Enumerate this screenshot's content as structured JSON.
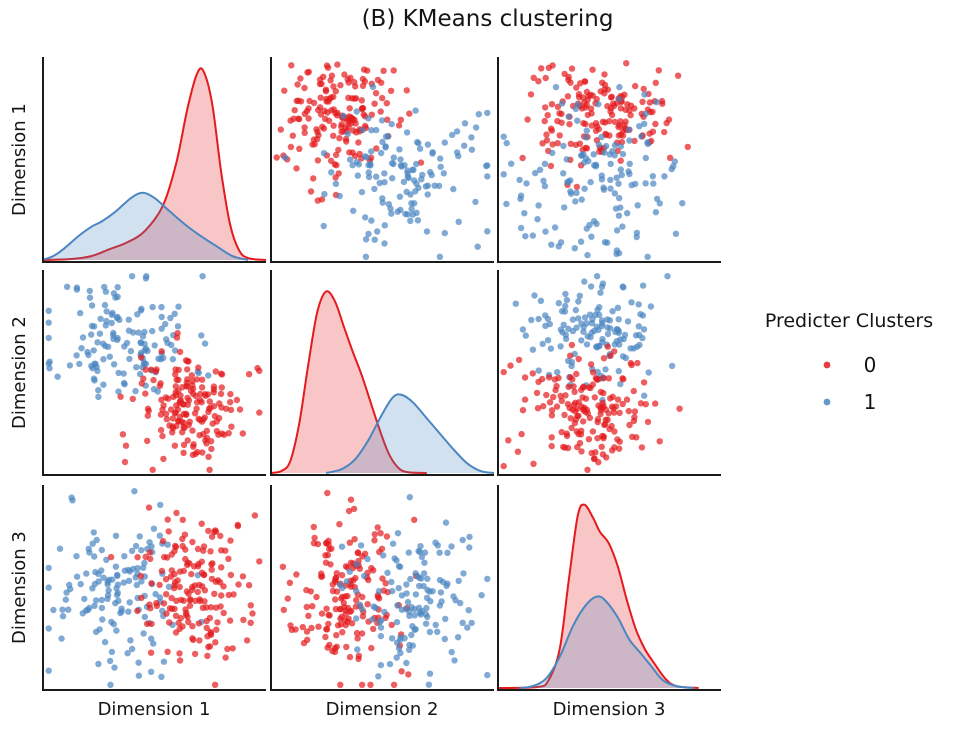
{
  "figure": {
    "title": "(B) KMeans clustering"
  },
  "axes": {
    "x_labels": [
      "Dimension 1",
      "Dimension 2",
      "Dimension 3"
    ],
    "y_labels": [
      "Dimension 1",
      "Dimension 2",
      "Dimension 3"
    ]
  },
  "legend": {
    "title": "Predicter Clusters",
    "entries": [
      {
        "label": "0",
        "color": "#e41a1c"
      },
      {
        "label": "1",
        "color": "#4a86c2"
      }
    ]
  },
  "chart_data": {
    "type": "scatter",
    "subtype": "pairplot-with-kde-diagonal",
    "title": "(B) KMeans clustering",
    "variables": [
      "Dimension 1",
      "Dimension 2",
      "Dimension 3"
    ],
    "legend_title": "Predicter Clusters",
    "cluster_labels": [
      "0",
      "1"
    ],
    "colors": {
      "cluster_0": "#e41a1c",
      "cluster_1": "#4a86c2"
    },
    "point_opacity": 0.7,
    "point_radius": 3.2,
    "kde_fill_opacity": 0.25,
    "kde_line_width": 2,
    "grid": "off",
    "legend_position": "right",
    "panels": [
      {
        "row": 1,
        "col": 1,
        "kind": "kde",
        "x_var": "Dimension 1",
        "curves": [
          {
            "cluster": "0",
            "color": "#e41a1c",
            "points": [
              [
                0.0,
                0
              ],
              [
                0.13,
                0.005
              ],
              [
                0.22,
                0.02
              ],
              [
                0.3,
                0.055
              ],
              [
                0.38,
                0.09
              ],
              [
                0.46,
                0.15
              ],
              [
                0.54,
                0.28
              ],
              [
                0.6,
                0.5
              ],
              [
                0.65,
                0.78
              ],
              [
                0.69,
                0.95
              ],
              [
                0.72,
                0.97
              ],
              [
                0.76,
                0.8
              ],
              [
                0.8,
                0.45
              ],
              [
                0.84,
                0.18
              ],
              [
                0.88,
                0.05
              ],
              [
                0.92,
                0.01
              ],
              [
                1.0,
                0
              ]
            ]
          },
          {
            "cluster": "1",
            "color": "#4a86c2",
            "points": [
              [
                0.0,
                0
              ],
              [
                0.05,
                0.02
              ],
              [
                0.1,
                0.06
              ],
              [
                0.16,
                0.12
              ],
              [
                0.22,
                0.17
              ],
              [
                0.27,
                0.2
              ],
              [
                0.33,
                0.25
              ],
              [
                0.4,
                0.32
              ],
              [
                0.45,
                0.345
              ],
              [
                0.5,
                0.32
              ],
              [
                0.56,
                0.26
              ],
              [
                0.63,
                0.19
              ],
              [
                0.7,
                0.13
              ],
              [
                0.78,
                0.07
              ],
              [
                0.85,
                0.02
              ],
              [
                0.92,
                0
              ]
            ]
          }
        ]
      },
      {
        "row": 1,
        "col": 2,
        "kind": "scatter",
        "x_var": "Dimension 2",
        "y_var": "Dimension 1",
        "clusters": [
          {
            "cluster": "0",
            "color": "#e41a1c",
            "center": [
              0.3,
              0.7
            ],
            "std": [
              0.12,
              0.14
            ],
            "n": 170,
            "seed": 7
          },
          {
            "cluster": "1",
            "color": "#4a86c2",
            "center": [
              0.6,
              0.42
            ],
            "std": [
              0.16,
              0.17
            ],
            "n": 135,
            "seed": 8
          }
        ]
      },
      {
        "row": 1,
        "col": 3,
        "kind": "scatter",
        "x_var": "Dimension 3",
        "y_var": "Dimension 1",
        "clusters": [
          {
            "cluster": "0",
            "color": "#e41a1c",
            "center": [
              0.45,
              0.72
            ],
            "std": [
              0.16,
              0.13
            ],
            "n": 170,
            "seed": 9
          },
          {
            "cluster": "1",
            "color": "#4a86c2",
            "center": [
              0.44,
              0.4
            ],
            "std": [
              0.17,
              0.19
            ],
            "n": 135,
            "seed": 10
          }
        ]
      },
      {
        "row": 2,
        "col": 1,
        "kind": "scatter",
        "x_var": "Dimension 1",
        "y_var": "Dimension 2",
        "clusters": [
          {
            "cluster": "1",
            "color": "#4a86c2",
            "center": [
              0.37,
              0.66
            ],
            "std": [
              0.15,
              0.16
            ],
            "n": 135,
            "seed": 11
          },
          {
            "cluster": "0",
            "color": "#e41a1c",
            "center": [
              0.67,
              0.33
            ],
            "std": [
              0.12,
              0.14
            ],
            "n": 170,
            "seed": 12
          }
        ]
      },
      {
        "row": 2,
        "col": 2,
        "kind": "kde",
        "x_var": "Dimension 2",
        "curves": [
          {
            "cluster": "0",
            "color": "#e41a1c",
            "points": [
              [
                0.0,
                0
              ],
              [
                0.05,
                0.01
              ],
              [
                0.09,
                0.06
              ],
              [
                0.13,
                0.25
              ],
              [
                0.17,
                0.55
              ],
              [
                0.21,
                0.82
              ],
              [
                0.25,
                0.93
              ],
              [
                0.29,
                0.88
              ],
              [
                0.33,
                0.75
              ],
              [
                0.37,
                0.62
              ],
              [
                0.41,
                0.5
              ],
              [
                0.45,
                0.36
              ],
              [
                0.49,
                0.22
              ],
              [
                0.53,
                0.1
              ],
              [
                0.57,
                0.03
              ],
              [
                0.61,
                0.005
              ],
              [
                0.7,
                0
              ]
            ]
          },
          {
            "cluster": "1",
            "color": "#4a86c2",
            "points": [
              [
                0.25,
                0
              ],
              [
                0.32,
                0.02
              ],
              [
                0.38,
                0.07
              ],
              [
                0.44,
                0.17
              ],
              [
                0.5,
                0.3
              ],
              [
                0.55,
                0.39
              ],
              [
                0.59,
                0.4
              ],
              [
                0.64,
                0.36
              ],
              [
                0.7,
                0.28
              ],
              [
                0.76,
                0.2
              ],
              [
                0.82,
                0.12
              ],
              [
                0.88,
                0.05
              ],
              [
                0.94,
                0.01
              ],
              [
                1.0,
                0
              ]
            ]
          }
        ]
      },
      {
        "row": 2,
        "col": 3,
        "kind": "scatter",
        "x_var": "Dimension 3",
        "y_var": "Dimension 2",
        "clusters": [
          {
            "cluster": "1",
            "color": "#4a86c2",
            "center": [
              0.43,
              0.7
            ],
            "std": [
              0.15,
              0.13
            ],
            "n": 135,
            "seed": 13
          },
          {
            "cluster": "0",
            "color": "#e41a1c",
            "center": [
              0.42,
              0.33
            ],
            "std": [
              0.15,
              0.14
            ],
            "n": 170,
            "seed": 14
          }
        ]
      },
      {
        "row": 3,
        "col": 1,
        "kind": "scatter",
        "x_var": "Dimension 1",
        "y_var": "Dimension 3",
        "clusters": [
          {
            "cluster": "1",
            "color": "#4a86c2",
            "center": [
              0.36,
              0.5
            ],
            "std": [
              0.15,
              0.19
            ],
            "n": 135,
            "seed": 15
          },
          {
            "cluster": "0",
            "color": "#e41a1c",
            "center": [
              0.68,
              0.48
            ],
            "std": [
              0.12,
              0.18
            ],
            "n": 170,
            "seed": 16
          }
        ]
      },
      {
        "row": 3,
        "col": 2,
        "kind": "scatter",
        "x_var": "Dimension 2",
        "y_var": "Dimension 3",
        "clusters": [
          {
            "cluster": "0",
            "color": "#e41a1c",
            "center": [
              0.33,
              0.45
            ],
            "std": [
              0.12,
              0.18
            ],
            "n": 170,
            "seed": 17
          },
          {
            "cluster": "1",
            "color": "#4a86c2",
            "center": [
              0.64,
              0.44
            ],
            "std": [
              0.14,
              0.18
            ],
            "n": 135,
            "seed": 18
          }
        ]
      },
      {
        "row": 3,
        "col": 3,
        "kind": "kde",
        "x_var": "Dimension 3",
        "curves": [
          {
            "cluster": "0",
            "color": "#e41a1c",
            "points": [
              [
                0.0,
                0
              ],
              [
                0.18,
                0.005
              ],
              [
                0.23,
                0.04
              ],
              [
                0.28,
                0.2
              ],
              [
                0.32,
                0.55
              ],
              [
                0.36,
                0.88
              ],
              [
                0.39,
                0.94
              ],
              [
                0.43,
                0.87
              ],
              [
                0.46,
                0.8
              ],
              [
                0.5,
                0.74
              ],
              [
                0.54,
                0.62
              ],
              [
                0.58,
                0.45
              ],
              [
                0.62,
                0.3
              ],
              [
                0.66,
                0.2
              ],
              [
                0.7,
                0.13
              ],
              [
                0.75,
                0.05
              ],
              [
                0.8,
                0.01
              ],
              [
                0.9,
                0
              ]
            ]
          },
          {
            "cluster": "1",
            "color": "#4a86c2",
            "points": [
              [
                0.1,
                0
              ],
              [
                0.16,
                0.01
              ],
              [
                0.22,
                0.05
              ],
              [
                0.28,
                0.16
              ],
              [
                0.34,
                0.32
              ],
              [
                0.4,
                0.43
              ],
              [
                0.45,
                0.47
              ],
              [
                0.49,
                0.44
              ],
              [
                0.54,
                0.36
              ],
              [
                0.59,
                0.25
              ],
              [
                0.64,
                0.18
              ],
              [
                0.69,
                0.11
              ],
              [
                0.74,
                0.04
              ],
              [
                0.8,
                0.01
              ],
              [
                0.88,
                0
              ]
            ]
          }
        ]
      }
    ]
  }
}
